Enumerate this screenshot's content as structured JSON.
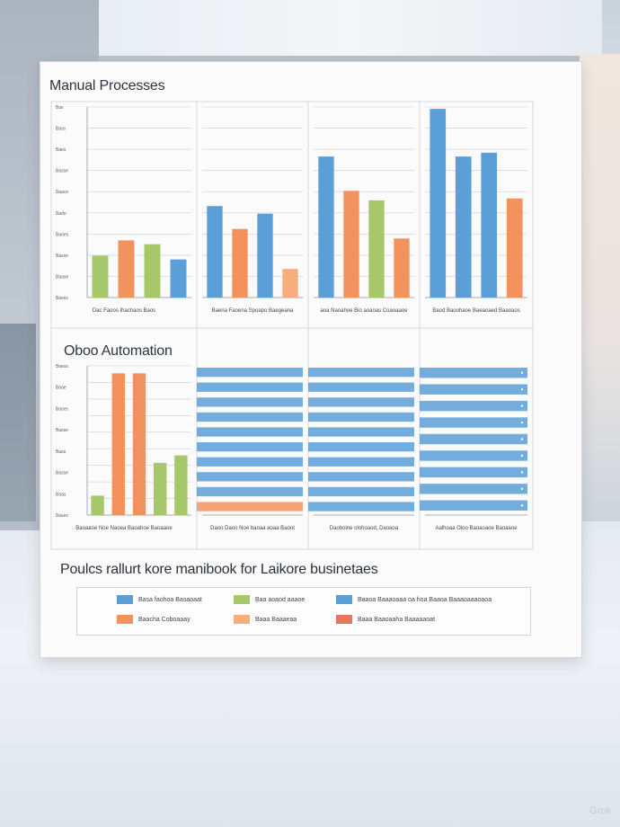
{
  "sections": {
    "top_title": "Manual Processes",
    "bottom_title": "Oboo Automation",
    "footer_title": "Poulcs rallurt kore manibook for Laikore businetaes"
  },
  "colors": {
    "blue": "#5b9fd8",
    "orange": "#f2935e",
    "green": "#a6c86a",
    "light_orange": "#f7ad7c",
    "red": "#e8735f",
    "grid": "#c9ced6"
  },
  "chart_data": [
    {
      "type": "bar",
      "title": "Manual Processes",
      "panel": 1,
      "ytick_labels": [
        "Bases",
        "Baase",
        "Basse",
        "Banes",
        "Bado",
        "Baace",
        "Basse",
        "Baes",
        "Bass",
        "Bas"
      ],
      "ylim": [
        0,
        10
      ],
      "bars": [
        {
          "color": "green",
          "value": 2.2
        },
        {
          "color": "orange",
          "value": 3.0
        },
        {
          "color": "green",
          "value": 2.8
        },
        {
          "color": "blue",
          "value": 2.0
        }
      ],
      "caption": "Dac Faoos Ihachaos       Baos"
    },
    {
      "type": "bar",
      "panel": 2,
      "bars": [
        {
          "color": "blue",
          "value": 4.8
        },
        {
          "color": "orange",
          "value": 3.6
        },
        {
          "color": "blue",
          "value": 4.4
        },
        {
          "color": "light_orange",
          "value": 1.5
        }
      ],
      "caption": "Baena Faoena Spoapo Baegeana"
    },
    {
      "type": "bar",
      "panel": 3,
      "bars": [
        {
          "color": "blue",
          "value": 7.4
        },
        {
          "color": "orange",
          "value": 5.6
        },
        {
          "color": "green",
          "value": 5.1
        },
        {
          "color": "orange",
          "value": 3.1
        }
      ],
      "caption": "aoa  Naoahoe  Bio aoaoas Coaoaaoe"
    },
    {
      "type": "bar",
      "panel": 4,
      "bars": [
        {
          "color": "blue",
          "value": 9.9
        },
        {
          "color": "blue",
          "value": 7.4
        },
        {
          "color": "blue",
          "value": 7.6
        },
        {
          "color": "orange",
          "value": 5.2
        }
      ],
      "caption": "Baod        Baoohaoe Baeaoaed Baaoaos"
    },
    {
      "type": "bar",
      "panel": 5,
      "title": "Oboo Automation",
      "ytick_labels": [
        "Bases",
        "Baas",
        "Basse",
        "Bass",
        "Basse",
        "Bases",
        "Baae",
        "Baess"
      ],
      "ylim": [
        0,
        10
      ],
      "bars": [
        {
          "color": "green",
          "value": 1.3
        },
        {
          "color": "orange",
          "value": 9.5
        },
        {
          "color": "orange",
          "value": 9.5
        },
        {
          "color": "green",
          "value": 3.5
        },
        {
          "color": "green",
          "value": 4.0
        }
      ],
      "caption": "Baoaaoe Noe Naoea Baoahoe Baoaaoe"
    },
    {
      "type": "bar",
      "panel": 6,
      "orientation": "horizontal",
      "bar_count": 10,
      "caption": "Daoo Daoo Noe baoaa aoaa Baoot"
    },
    {
      "type": "bar",
      "panel": 7,
      "orientation": "horizontal",
      "bar_count": 10,
      "caption": "Daoboine olohoaod, Daoaoa"
    },
    {
      "type": "bar",
      "panel": 8,
      "orientation": "horizontal",
      "bar_count": 9,
      "caption": "Aalhoaa Oloo Baoaoaoe Baoaaoe"
    }
  ],
  "legend": {
    "items": [
      {
        "color": "blue",
        "label": "Basa faohoa Basaoaat"
      },
      {
        "color": "green",
        "label": "Baa aoaod aaaoe"
      },
      {
        "color": "blue",
        "label": "Baaoa Baaaoaaa oa hoa Baaoa Baaaoaaaoaoa"
      },
      {
        "color": "orange",
        "label": "Baacha Coboaaay"
      },
      {
        "color": "light_orange",
        "label": "Baaa Baaaeaa"
      },
      {
        "color": "red",
        "label": "Baaa Baaoaaha Baaaaaoat"
      }
    ]
  },
  "watermark": "Grok"
}
